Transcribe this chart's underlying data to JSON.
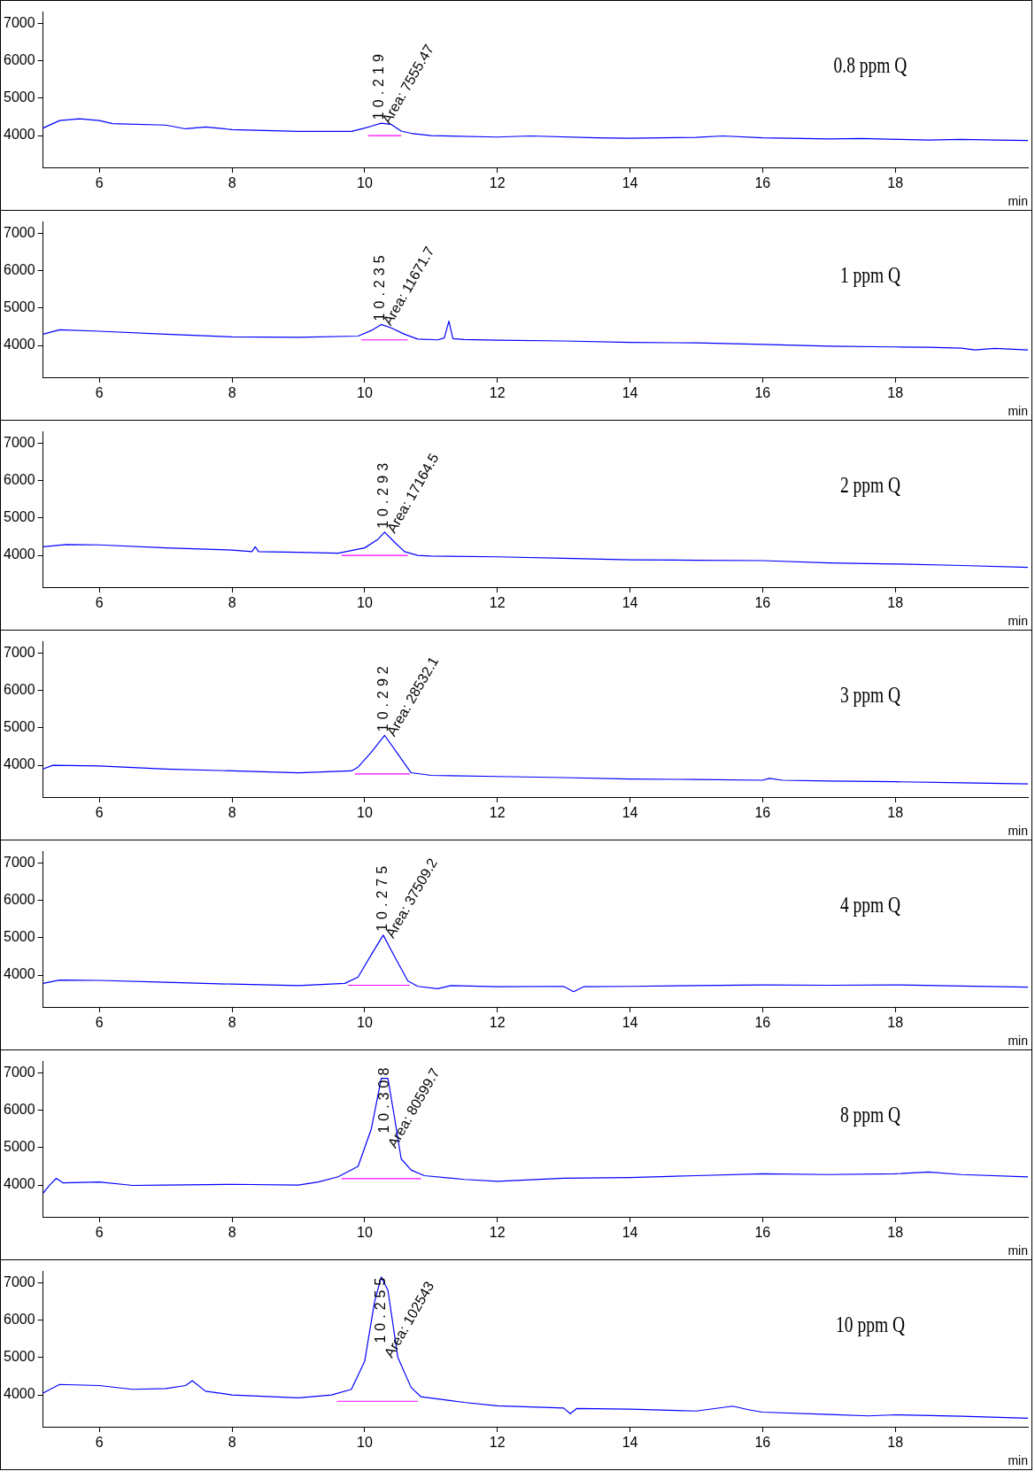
{
  "chart_data": [
    {
      "type": "line",
      "title": "0.8 ppm Q",
      "xlabel": "min",
      "xlim": [
        5.15,
        20
      ],
      "xticks": [
        6,
        8,
        10,
        12,
        14,
        16,
        18
      ],
      "ylim": [
        3150,
        7300
      ],
      "yticks": [
        4000,
        5000,
        6000,
        7000
      ],
      "grid": false,
      "series": [
        {
          "color": "#0000ff",
          "x": [
            5.15,
            5.4,
            5.7,
            6.0,
            6.2,
            7.0,
            7.3,
            7.6,
            8.0,
            9.0,
            9.8,
            10.0,
            10.1,
            10.25,
            10.4,
            10.55,
            10.7,
            11.0,
            12.0,
            12.5,
            13.5,
            14.0,
            15.0,
            15.4,
            16.0,
            17.0,
            17.5,
            18.0,
            18.5,
            19.0,
            19.5,
            20
          ],
          "values": [
            4200,
            4400,
            4450,
            4400,
            4320,
            4280,
            4180,
            4230,
            4160,
            4110,
            4110,
            4200,
            4250,
            4330,
            4300,
            4120,
            4060,
            4000,
            3960,
            3990,
            3940,
            3930,
            3950,
            3990,
            3940,
            3910,
            3920,
            3900,
            3880,
            3900,
            3880,
            3870
          ]
        },
        {
          "color": "#ff00ff",
          "x": [
            10.05,
            10.55
          ],
          "values": [
            4000,
            4000
          ]
        }
      ],
      "annotations": [
        {
          "text": "10.219",
          "x": 10.219,
          "y": 4330
        },
        "Area: 7555.47"
      ]
    },
    {
      "type": "line",
      "title": "1 ppm Q",
      "xlabel": "min",
      "xlim": [
        5.15,
        20
      ],
      "xticks": [
        6,
        8,
        10,
        12,
        14,
        16,
        18
      ],
      "ylim": [
        3150,
        7300
      ],
      "yticks": [
        4000,
        5000,
        6000,
        7000
      ],
      "grid": false,
      "series": [
        {
          "color": "#0000ff",
          "x": [
            5.15,
            5.4,
            6,
            7,
            8,
            9,
            9.9,
            10.1,
            10.25,
            10.4,
            10.6,
            10.8,
            11.1,
            11.2,
            11.27,
            11.33,
            11.5,
            12,
            13,
            14,
            15,
            16,
            17,
            18,
            18.5,
            19,
            19.2,
            19.5,
            20
          ],
          "values": [
            4300,
            4420,
            4380,
            4300,
            4230,
            4220,
            4250,
            4400,
            4560,
            4470,
            4300,
            4170,
            4150,
            4200,
            4650,
            4180,
            4160,
            4140,
            4120,
            4080,
            4070,
            4030,
            3980,
            3960,
            3950,
            3930,
            3880,
            3920,
            3880
          ]
        },
        {
          "color": "#ff00ff",
          "x": [
            9.95,
            10.65
          ],
          "values": [
            4150,
            4150
          ]
        }
      ],
      "annotations": [
        {
          "text": "10.235",
          "x": 10.235,
          "y": 4560
        },
        "Area: 11671.7"
      ]
    },
    {
      "type": "line",
      "title": "2 ppm Q",
      "xlabel": "min",
      "xlim": [
        5.15,
        20
      ],
      "xticks": [
        6,
        8,
        10,
        12,
        14,
        16,
        18
      ],
      "ylim": [
        3150,
        7300
      ],
      "yticks": [
        4000,
        5000,
        6000,
        7000
      ],
      "grid": false,
      "series": [
        {
          "color": "#0000ff",
          "x": [
            5.15,
            5.5,
            6,
            7,
            8,
            8.3,
            8.35,
            8.4,
            9,
            9.6,
            10.0,
            10.2,
            10.3,
            10.45,
            10.6,
            10.8,
            11,
            12,
            13,
            14,
            15,
            16,
            17,
            18,
            19,
            20
          ],
          "values": [
            4230,
            4290,
            4280,
            4200,
            4140,
            4100,
            4230,
            4100,
            4080,
            4060,
            4200,
            4430,
            4620,
            4350,
            4100,
            4000,
            3980,
            3960,
            3920,
            3880,
            3870,
            3860,
            3800,
            3770,
            3730,
            3680
          ]
        },
        {
          "color": "#ff00ff",
          "x": [
            9.65,
            10.65
          ],
          "values": [
            4000,
            4000
          ]
        }
      ],
      "annotations": [
        {
          "text": "10.293",
          "x": 10.293,
          "y": 4620
        },
        "Area: 17164.5"
      ]
    },
    {
      "type": "line",
      "title": "3 ppm Q",
      "xlabel": "min",
      "xlim": [
        5.15,
        20
      ],
      "xticks": [
        6,
        8,
        10,
        12,
        14,
        16,
        18
      ],
      "ylim": [
        3150,
        7300
      ],
      "yticks": [
        4000,
        5000,
        6000,
        7000
      ],
      "grid": false,
      "series": [
        {
          "color": "#0000ff",
          "x": [
            5.15,
            5.3,
            6,
            7,
            8,
            9,
            9.8,
            9.9,
            10.1,
            10.3,
            10.5,
            10.7,
            11,
            12,
            13,
            14,
            15,
            16,
            16.1,
            16.3,
            17,
            18,
            19,
            20
          ],
          "values": [
            3900,
            4000,
            3980,
            3900,
            3850,
            3800,
            3850,
            3950,
            4350,
            4800,
            4300,
            3800,
            3730,
            3700,
            3670,
            3630,
            3620,
            3600,
            3650,
            3600,
            3580,
            3560,
            3530,
            3500
          ]
        },
        {
          "color": "#ff00ff",
          "x": [
            9.85,
            10.68
          ],
          "values": [
            3770,
            3770
          ]
        }
      ],
      "annotations": [
        {
          "text": "10.292",
          "x": 10.292,
          "y": 4800
        },
        "Area: 28532.1"
      ]
    },
    {
      "type": "line",
      "title": "4 ppm Q",
      "xlabel": "min",
      "xlim": [
        5.15,
        20
      ],
      "xticks": [
        6,
        8,
        10,
        12,
        14,
        16,
        18
      ],
      "ylim": [
        3150,
        7300
      ],
      "yticks": [
        4000,
        5000,
        6000,
        7000
      ],
      "grid": false,
      "series": [
        {
          "color": "#0000ff",
          "x": [
            5.15,
            5.4,
            6,
            7,
            8,
            9,
            9.7,
            9.9,
            10.1,
            10.28,
            10.45,
            10.65,
            10.8,
            11.1,
            11.3,
            12,
            13,
            13.15,
            13.3,
            14,
            15,
            16,
            17,
            18,
            19,
            20
          ],
          "values": [
            3780,
            3870,
            3860,
            3810,
            3760,
            3720,
            3780,
            3950,
            4550,
            5070,
            4500,
            3850,
            3700,
            3640,
            3720,
            3690,
            3700,
            3560,
            3690,
            3700,
            3720,
            3740,
            3730,
            3740,
            3710,
            3680
          ]
        },
        {
          "color": "#ff00ff",
          "x": [
            9.75,
            10.68
          ],
          "values": [
            3730,
            3730
          ]
        }
      ],
      "annotations": [
        {
          "text": "10.275",
          "x": 10.275,
          "y": 5070
        },
        "Area: 37509.2"
      ]
    },
    {
      "type": "line",
      "title": "8 ppm Q",
      "xlabel": "min",
      "xlim": [
        5.15,
        20
      ],
      "xticks": [
        6,
        8,
        10,
        12,
        14,
        16,
        18
      ],
      "ylim": [
        3150,
        7300
      ],
      "yticks": [
        4000,
        5000,
        6000,
        7000
      ],
      "grid": false,
      "series": [
        {
          "color": "#0000ff",
          "x": [
            5.15,
            5.25,
            5.35,
            5.45,
            6,
            6.5,
            7,
            8,
            9,
            9.3,
            9.6,
            9.9,
            10.1,
            10.25,
            10.35,
            10.45,
            10.55,
            10.7,
            10.9,
            11.5,
            12,
            13,
            14,
            15,
            16,
            17,
            18,
            18.5,
            19,
            20
          ],
          "values": [
            3780,
            4000,
            4180,
            4060,
            4080,
            3990,
            4000,
            4020,
            4000,
            4080,
            4220,
            4500,
            5500,
            6850,
            6850,
            5800,
            4700,
            4400,
            4250,
            4150,
            4100,
            4180,
            4200,
            4250,
            4300,
            4280,
            4300,
            4350,
            4280,
            4220
          ]
        },
        {
          "color": "#ff00ff",
          "x": [
            9.65,
            10.85
          ],
          "values": [
            4170,
            4170
          ]
        }
      ],
      "annotations": [
        {
          "text": "10.308",
          "x": 10.308,
          "y": 6850
        },
        "Area: 80599.7"
      ]
    },
    {
      "type": "line",
      "title": "10 ppm Q",
      "xlabel": "min",
      "xlim": [
        5.15,
        20
      ],
      "xticks": [
        6,
        8,
        10,
        12,
        14,
        16,
        18
      ],
      "ylim": [
        3150,
        7300
      ],
      "yticks": [
        4000,
        5000,
        6000,
        7000
      ],
      "grid": false,
      "series": [
        {
          "color": "#0000ff",
          "x": [
            5.15,
            5.4,
            6,
            6.5,
            7,
            7.3,
            7.4,
            7.6,
            8,
            9,
            9.5,
            9.8,
            10.0,
            10.15,
            10.25,
            10.35,
            10.5,
            10.7,
            10.85,
            11.5,
            12,
            13,
            13.1,
            13.2,
            14,
            15,
            15.55,
            15.8,
            16,
            17,
            17.6,
            18,
            19,
            20
          ],
          "values": [
            4050,
            4280,
            4250,
            4150,
            4170,
            4250,
            4380,
            4100,
            4000,
            3920,
            4000,
            4150,
            4900,
            6500,
            7150,
            6800,
            5000,
            4200,
            3950,
            3800,
            3710,
            3650,
            3500,
            3640,
            3620,
            3570,
            3700,
            3600,
            3540,
            3480,
            3440,
            3470,
            3430,
            3380
          ]
        },
        {
          "color": "#ff00ff",
          "x": [
            9.58,
            10.8
          ],
          "values": [
            3830,
            3830
          ]
        }
      ],
      "annotations": [
        {
          "text": "10.255",
          "x": 10.255,
          "y": 7150
        },
        "Area: 102543"
      ]
    }
  ]
}
